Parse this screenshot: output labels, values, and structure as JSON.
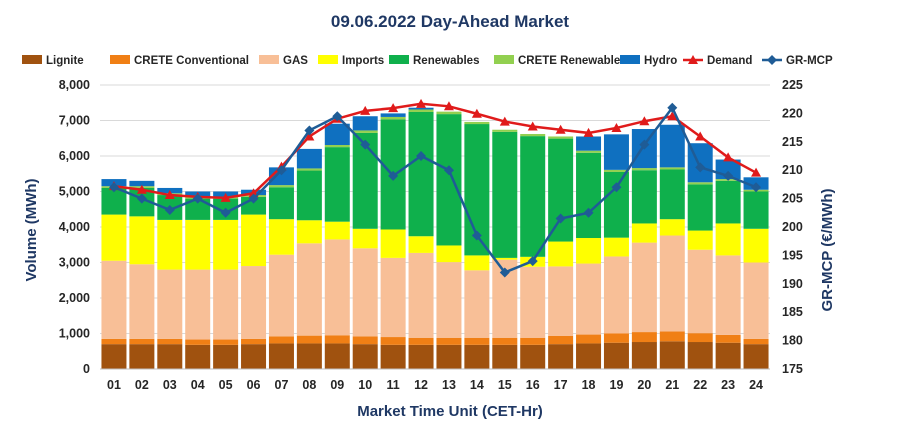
{
  "chart_data": {
    "type": "bar",
    "title": "09.06.2022  Day-Ahead Market",
    "xlabel": "Market Time Unit (CET-Hr)",
    "ylabel": "Volume (MWh)",
    "ylabel_right": "GR-MCP (€/MWh)",
    "ylim": [
      0,
      8000
    ],
    "ylim_right": [
      175,
      225
    ],
    "categories": [
      "01",
      "02",
      "03",
      "04",
      "05",
      "06",
      "07",
      "08",
      "09",
      "10",
      "11",
      "12",
      "13",
      "14",
      "15",
      "16",
      "17",
      "18",
      "19",
      "20",
      "21",
      "22",
      "23",
      "24"
    ],
    "y_ticks": [
      "0",
      "1,000",
      "2,000",
      "3,000",
      "4,000",
      "5,000",
      "6,000",
      "7,000",
      "8,000"
    ],
    "y_ticks_right": [
      "175",
      "180",
      "185",
      "190",
      "195",
      "200",
      "205",
      "210",
      "215",
      "220",
      "225"
    ],
    "series": [
      {
        "name": "Lignite",
        "color": "#a0520f",
        "values": [
          700,
          700,
          700,
          680,
          680,
          700,
          720,
          720,
          720,
          700,
          680,
          680,
          680,
          680,
          680,
          680,
          700,
          720,
          740,
          760,
          780,
          760,
          740,
          700
        ]
      },
      {
        "name": "CRETE Conventional",
        "color": "#f07f15",
        "values": [
          150,
          150,
          150,
          150,
          150,
          150,
          200,
          220,
          230,
          220,
          220,
          200,
          200,
          200,
          200,
          200,
          230,
          250,
          260,
          280,
          280,
          250,
          220,
          150
        ]
      },
      {
        "name": "GAS",
        "color": "#f8bf97",
        "values": [
          2200,
          2100,
          1950,
          1970,
          1970,
          2050,
          2300,
          2600,
          2700,
          2480,
          2230,
          2390,
          2130,
          1900,
          2200,
          2000,
          1960,
          2000,
          2170,
          2520,
          2700,
          2350,
          2240,
          2150
        ]
      },
      {
        "name": "Imports",
        "color": "#ffff00",
        "values": [
          1300,
          1350,
          1400,
          1400,
          1400,
          1450,
          1000,
          650,
          500,
          550,
          800,
          470,
          470,
          420,
          50,
          280,
          700,
          720,
          530,
          540,
          460,
          540,
          900,
          950
        ]
      },
      {
        "name": "Renewables",
        "color": "#0fb04c",
        "values": [
          750,
          800,
          700,
          600,
          600,
          500,
          900,
          1400,
          2100,
          2700,
          3100,
          3500,
          3700,
          3700,
          3550,
          3400,
          2900,
          2400,
          1850,
          1500,
          1400,
          1300,
          1200,
          1050
        ]
      },
      {
        "name": "CRETE Renewables",
        "color": "#92d050",
        "values": [
          50,
          50,
          50,
          50,
          50,
          50,
          60,
          60,
          60,
          70,
          70,
          70,
          70,
          60,
          60,
          60,
          60,
          60,
          60,
          60,
          60,
          60,
          50,
          50
        ]
      },
      {
        "name": "Hydro",
        "color": "#0f70c0",
        "values": [
          200,
          150,
          150,
          150,
          150,
          150,
          500,
          550,
          600,
          400,
          100,
          50,
          0,
          0,
          0,
          0,
          0,
          400,
          1000,
          1100,
          1200,
          1100,
          550,
          350
        ]
      }
    ],
    "demand": {
      "name": "Demand",
      "color": "#e01b1b",
      "values": [
        5150,
        5050,
        4900,
        4850,
        4820,
        4950,
        5700,
        6550,
        7050,
        7270,
        7350,
        7470,
        7400,
        7190,
        6970,
        6830,
        6740,
        6650,
        6790,
        6980,
        7120,
        6550,
        5960,
        5530
      ]
    },
    "mcp": {
      "name": "GR-MCP",
      "color": "#1f5c96",
      "values": [
        207,
        205,
        203,
        205,
        202.5,
        205,
        210,
        217,
        219.5,
        214.5,
        209,
        212.5,
        210,
        198.5,
        192,
        194,
        201.5,
        202.5,
        207,
        214.5,
        221,
        210.5,
        209,
        207
      ]
    }
  }
}
